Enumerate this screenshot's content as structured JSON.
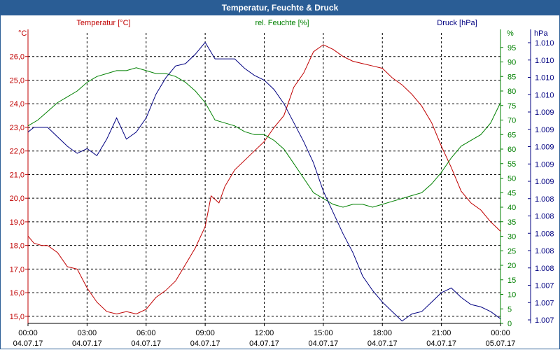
{
  "title": "Temperatur, Feuchte & Druck",
  "chart_data": {
    "type": "line",
    "title": "Temperatur, Feuchte & Druck",
    "grid": true,
    "legend": "top",
    "x_ticks": [
      {
        "time": "00:00",
        "date": "04.07.17"
      },
      {
        "time": "03:00",
        "date": "04.07.17"
      },
      {
        "time": "06:00",
        "date": "04.07.17"
      },
      {
        "time": "09:00",
        "date": "04.07.17"
      },
      {
        "time": "12:00",
        "date": "04.07.17"
      },
      {
        "time": "15:00",
        "date": "04.07.17"
      },
      {
        "time": "18:00",
        "date": "04.07.17"
      },
      {
        "time": "21:00",
        "date": "04.07.17"
      },
      {
        "time": "00:00",
        "date": "05.07.17"
      }
    ],
    "axes": {
      "temperature": {
        "label": "Temperatur [°C]",
        "unit": "°C",
        "range": [
          14.7,
          27.0
        ],
        "ticks": [
          "15,0",
          "16,0",
          "17,0",
          "18,0",
          "19,0",
          "20,0",
          "21,0",
          "22,0",
          "23,0",
          "24,0",
          "25,0",
          "26,0"
        ],
        "tick_values": [
          15,
          16,
          17,
          18,
          19,
          20,
          21,
          22,
          23,
          24,
          25,
          26
        ],
        "color": "#c00000"
      },
      "humidity": {
        "label": "rel. Feuchte [%]",
        "unit": "%",
        "range": [
          0,
          100
        ],
        "ticks": [
          "0",
          "5",
          "10",
          "15",
          "20",
          "25",
          "30",
          "35",
          "40",
          "45",
          "50",
          "55",
          "60",
          "65",
          "70",
          "75",
          "80",
          "85",
          "90",
          "95"
        ],
        "tick_values": [
          0,
          5,
          10,
          15,
          20,
          25,
          30,
          35,
          40,
          45,
          50,
          55,
          60,
          65,
          70,
          75,
          80,
          85,
          90,
          95
        ],
        "color": "#008000"
      },
      "pressure": {
        "label": "Druck [hPa]",
        "unit": "hPa",
        "ticks": [
          "1.007",
          "1.007",
          "1.007",
          "1.008",
          "1.008",
          "1.008",
          "1.008",
          "1.008",
          "1.009",
          "1.009",
          "1.009",
          "1.009",
          "1.009",
          "1.010",
          "1.010",
          "1.010",
          "1.010"
        ],
        "color": "#000080"
      }
    },
    "series": [
      {
        "name": "Temperatur [°C]",
        "color": "#c00000",
        "axis": "temperature",
        "x": [
          0,
          0.3,
          0.7,
          1,
          1.5,
          2,
          2.5,
          3,
          3.5,
          4,
          4.5,
          5,
          5.5,
          6,
          6.5,
          7,
          7.5,
          8,
          8.5,
          9,
          9.3,
          9.7,
          10,
          10.5,
          11,
          11.5,
          12,
          12.5,
          13,
          13.5,
          14,
          14.5,
          15,
          15.5,
          16,
          16.5,
          17,
          17.5,
          18,
          18.5,
          19,
          19.5,
          20,
          20.5,
          21,
          21.5,
          22,
          22.5,
          23,
          23.5,
          24
        ],
        "y": [
          18.4,
          18.1,
          18.0,
          18.0,
          17.7,
          17.1,
          17.0,
          16.2,
          15.6,
          15.2,
          15.1,
          15.2,
          15.1,
          15.3,
          15.8,
          16.1,
          16.5,
          17.2,
          17.9,
          18.8,
          20.1,
          19.8,
          20.5,
          21.2,
          21.6,
          22.0,
          22.4,
          23.0,
          23.5,
          24.7,
          25.3,
          26.2,
          26.5,
          26.3,
          26.0,
          25.8,
          25.7,
          25.6,
          25.5,
          25.1,
          24.8,
          24.4,
          23.9,
          23.2,
          22.2,
          21.3,
          20.3,
          19.8,
          19.5,
          19.0,
          18.6
        ]
      },
      {
        "name": "rel. Feuchte [%]",
        "color": "#008000",
        "axis": "humidity",
        "x": [
          0,
          0.5,
          1,
          1.5,
          2,
          2.5,
          3,
          3.5,
          4,
          4.5,
          5,
          5.5,
          6,
          6.5,
          7,
          7.5,
          8,
          8.5,
          9,
          9.5,
          10,
          10.5,
          11,
          11.5,
          12,
          12.5,
          13,
          13.5,
          14,
          14.5,
          15,
          15.5,
          16,
          16.5,
          17,
          17.5,
          18,
          18.5,
          19,
          19.5,
          20,
          20.5,
          21,
          21.5,
          22,
          22.5,
          23,
          23.5,
          24
        ],
        "y": [
          68,
          70,
          73,
          76,
          78,
          80,
          83,
          85,
          86,
          87,
          87,
          88,
          87,
          86,
          86,
          85,
          83,
          80,
          76,
          70,
          69,
          68,
          66,
          65,
          65,
          63,
          60,
          55,
          50,
          45,
          43,
          41,
          40,
          41,
          41,
          40,
          41,
          42,
          43,
          44,
          45,
          48,
          52,
          57,
          61,
          63,
          65,
          69,
          76
        ]
      },
      {
        "name": "Druck [hPa]",
        "color": "#000080",
        "axis": "pressure_scaled",
        "x": [
          0,
          0.3,
          1,
          1.5,
          2,
          2.5,
          3,
          3.5,
          4,
          4.5,
          5,
          5.5,
          6,
          6.5,
          7,
          7.5,
          8,
          8.5,
          9,
          9.5,
          10,
          10.5,
          11,
          11.5,
          12,
          12.5,
          13,
          13.5,
          14,
          14.5,
          15,
          15.5,
          16,
          16.5,
          17,
          17.5,
          18,
          18.5,
          19,
          19.5,
          20,
          20.5,
          21,
          21.5,
          22,
          22.5,
          23,
          23.5,
          24
        ],
        "y": [
          22.8,
          23.0,
          23.0,
          22.6,
          22.2,
          21.9,
          22.1,
          21.8,
          22.5,
          23.4,
          22.5,
          22.8,
          23.4,
          24.4,
          25.1,
          25.6,
          25.7,
          26.1,
          26.6,
          25.9,
          25.9,
          25.9,
          25.5,
          25.2,
          25.0,
          24.6,
          24.0,
          23.2,
          22.4,
          21.5,
          20.3,
          19.4,
          18.5,
          17.7,
          16.7,
          16.1,
          15.6,
          15.2,
          14.8,
          15.1,
          15.2,
          15.6,
          16.0,
          16.2,
          15.8,
          15.5,
          15.4,
          15.2,
          14.9
        ]
      }
    ]
  }
}
